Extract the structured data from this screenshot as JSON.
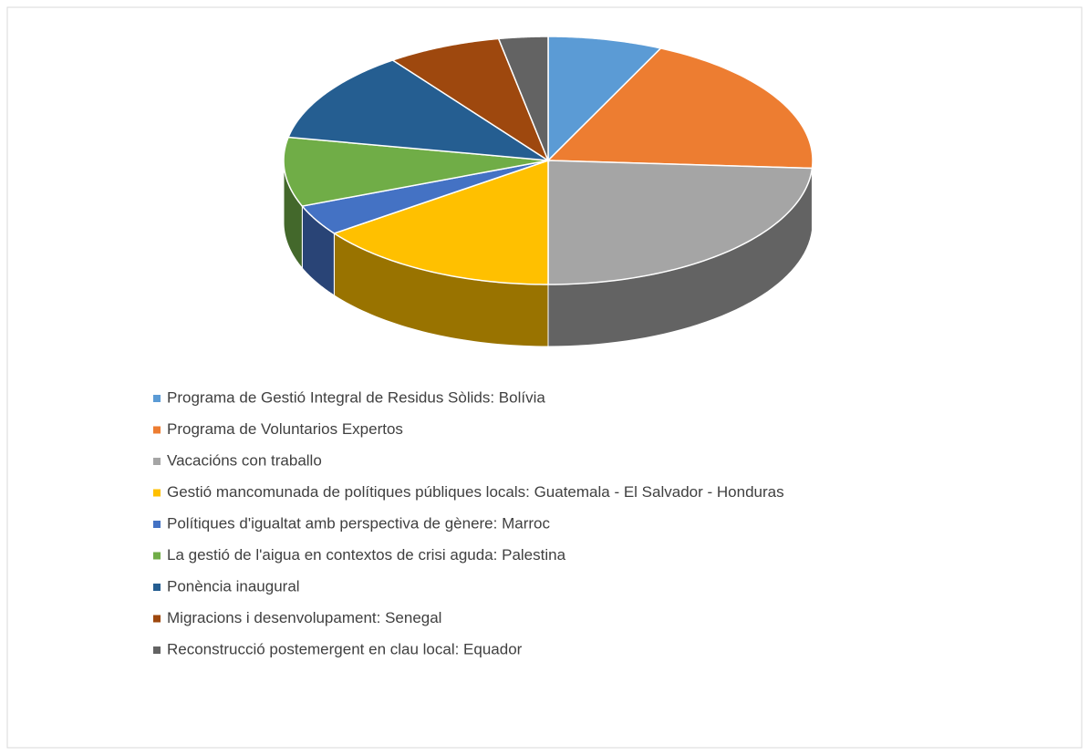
{
  "chart_data": {
    "type": "pie3d",
    "categories": [
      "Programa de Gestió Integral de Residus Sòlids: Bolívia",
      "Programa de Voluntarios Expertos",
      "Vacacións con traballo",
      "Gestió mancomunada de polítiques públiques locals: Guatemala - El Salvador - Honduras",
      "Polítiques d'igualtat amb perspectiva de gènere: Marroc",
      "La gestió de l'aigua en contextos de crisi aguda: Palestina",
      "Ponència inaugural",
      "Migracions i desenvolupament: Senegal",
      "Reconstrucció postemergent en clau local: Equador"
    ],
    "values": [
      7,
      19,
      24,
      15,
      4,
      9,
      12,
      7,
      3
    ],
    "colors": [
      "#5b9bd5",
      "#ed7d31",
      "#a5a5a5",
      "#ffc000",
      "#4472c4",
      "#70ad47",
      "#255e91",
      "#9e480e",
      "#636363"
    ]
  }
}
